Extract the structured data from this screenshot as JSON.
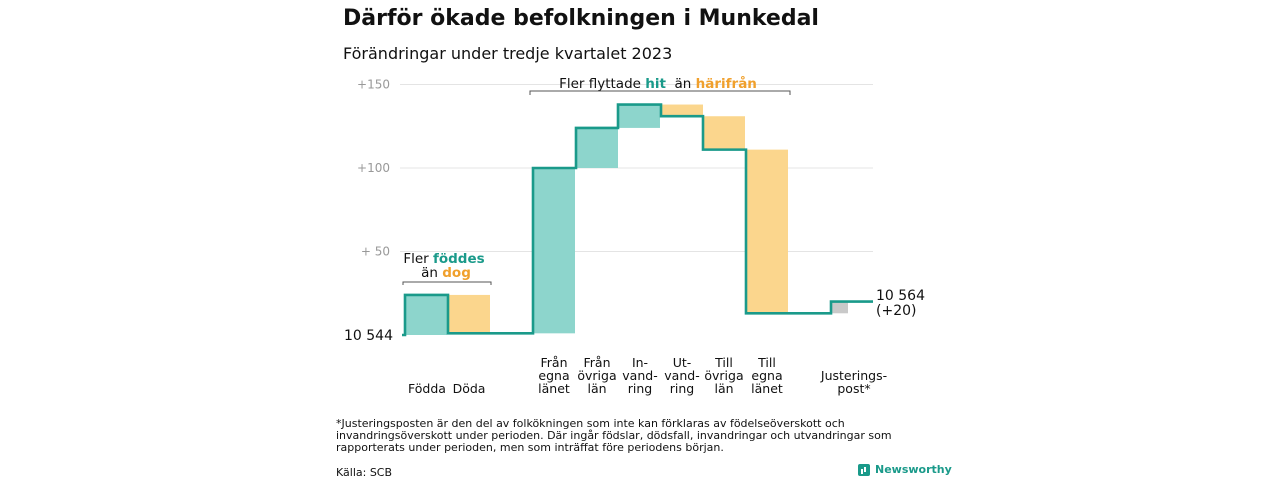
{
  "title": "Därför ökade befolkningen i Munkedal",
  "subtitle": "Förändringar under tredje kvartalet 2023",
  "footnote": "*Justeringsposten är den del av folkökningen som inte kan förklaras av födelseöverskott och invandringsöverskott under perioden. Där ingår födslar, dödsfall, invandringar och utvandringar som rapporterats under perioden, men som inträffat före periodens början.",
  "source": "Källa: SCB",
  "brand": "Newsworthy",
  "colors": {
    "increase": "#8dd5cc",
    "decrease": "#fbd68d",
    "adjustment": "#c9c9c9",
    "line": "#1a9a8a",
    "teal_text": "#1a9a8a",
    "orange_text": "#f0a02c",
    "grid": "#e4e4e4"
  },
  "chart_data": {
    "type": "waterfall",
    "start_label": "10  544",
    "end_label": [
      "10 564",
      "(+20)"
    ],
    "y_ticks": [
      "+150",
      "+100",
      "+  50"
    ],
    "y_tick_values": [
      150,
      100,
      50
    ],
    "ylim": [
      0,
      160
    ],
    "steps": [
      {
        "label": [
          "Födda"
        ],
        "start": 0,
        "end": 24,
        "kind": "increase"
      },
      {
        "label": [
          "Döda"
        ],
        "start": 24,
        "end": 1,
        "kind": "decrease"
      },
      {
        "label": [
          "Från",
          "egna",
          "länet"
        ],
        "start": 1,
        "end": 100,
        "kind": "increase"
      },
      {
        "label": [
          "Från",
          "övriga",
          "län"
        ],
        "start": 100,
        "end": 124,
        "kind": "increase"
      },
      {
        "label": [
          "In-",
          "vand-",
          "ring"
        ],
        "start": 124,
        "end": 138,
        "kind": "increase"
      },
      {
        "label": [
          "Ut-",
          "vand-",
          "ring"
        ],
        "start": 138,
        "end": 131,
        "kind": "decrease"
      },
      {
        "label": [
          "Till",
          "övriga",
          "län"
        ],
        "start": 131,
        "end": 111,
        "kind": "decrease"
      },
      {
        "label": [
          "Till",
          "egna",
          "länet"
        ],
        "start": 111,
        "end": 13,
        "kind": "decrease"
      },
      {
        "label": [
          "Justerings-",
          "post*"
        ],
        "start": 13,
        "end": 20,
        "kind": "adjustment"
      }
    ],
    "annotations": [
      {
        "lines": [
          [
            {
              "text": "Fler ",
              "style": "plain"
            },
            {
              "text": "föddes",
              "style": "teal"
            }
          ],
          [
            {
              "text": "än ",
              "style": "plain"
            },
            {
              "text": "dog",
              "style": "orange"
            }
          ]
        ]
      },
      {
        "lines": [
          [
            {
              "text": "Fler flyttade ",
              "style": "plain"
            },
            {
              "text": "hit",
              "style": "teal"
            },
            {
              "text": "  än ",
              "style": "plain"
            },
            {
              "text": "härifrån",
              "style": "orange"
            }
          ]
        ]
      }
    ]
  }
}
